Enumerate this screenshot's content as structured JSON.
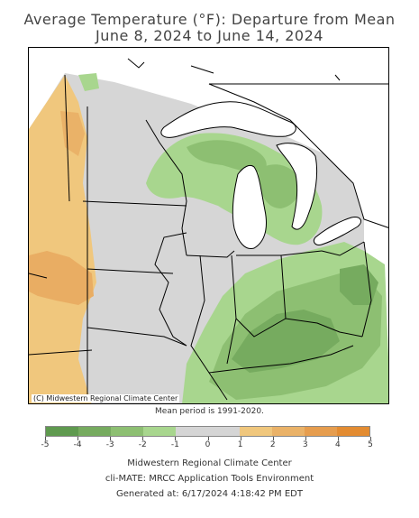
{
  "title_line1": "Average Temperature (°F): Departure from Mean",
  "title_line2": "June 8, 2024 to June 14, 2024",
  "copyright": "(C) Midwestern Regional Climate Center",
  "mean_period": "Mean period is 1991-2020.",
  "legend": {
    "ticks": [
      "-5",
      "-4",
      "-3",
      "-2",
      "-1",
      "0",
      "1",
      "2",
      "3",
      "4",
      "5"
    ],
    "colors": [
      "#5f9a4f",
      "#76ab5f",
      "#8dbf72",
      "#a8d68e",
      "#d5d5d5",
      "#d5d5d5",
      "#f0c77d",
      "#eab268",
      "#e69d4e",
      "#e38c32"
    ]
  },
  "footer_line1": "Midwestern Regional Climate Center",
  "footer_line2": "cli-MATE: MRCC Application Tools Environment",
  "footer_line3": "Generated at: 6/17/2024 4:18:42 PM EDT"
}
